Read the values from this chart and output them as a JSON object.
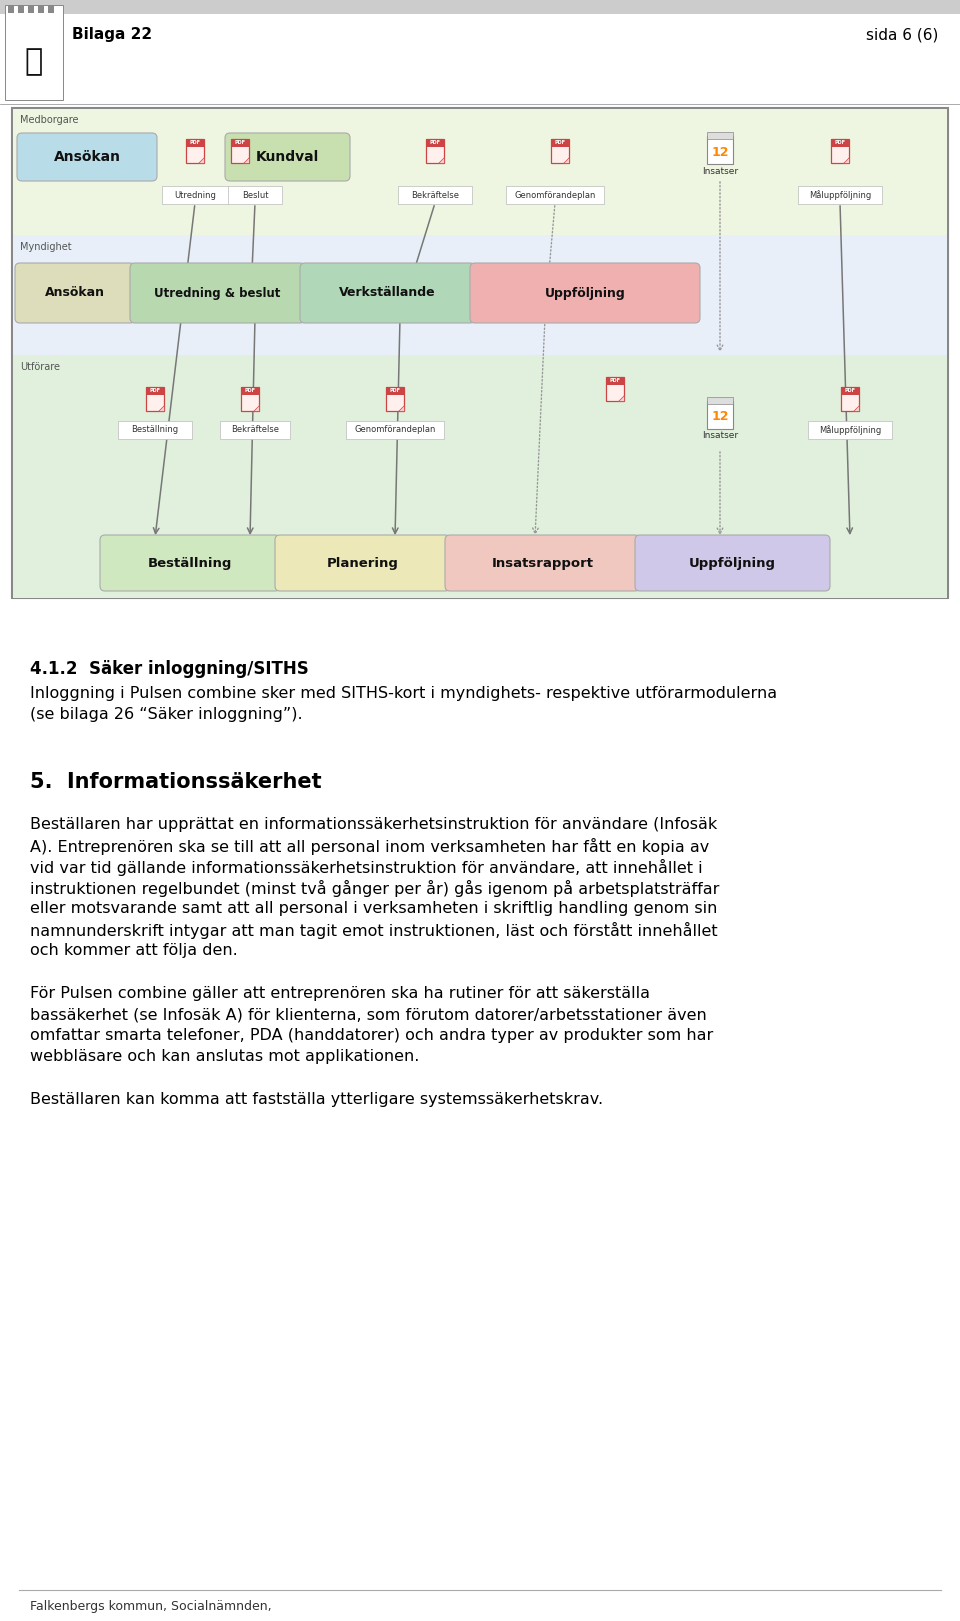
{
  "page_background": "#ffffff",
  "header_bg": "#cccccc",
  "header_text_left": "Bilaga 22",
  "header_text_right": "sida 6 (6)",
  "section_412_title": "4.1.2  Säker inloggning/SITHS",
  "section_412_line1": "Inloggning i Pulsen combine sker med SITHS-kort i myndighets- respektive utförarmodulerna",
  "section_412_line2": "(se bilaga 26 “Säker inloggning”).",
  "section_5_title": "5.  Informationssäkerhet",
  "section_5_p1": [
    "Beställaren har upprättat en informationssäkerhetsinstruktion för användare (Infosäk",
    "A). Entreprenören ska se till att all personal inom verksamheten har fått en kopia av",
    "vid var tid gällande informationssäkerhetsinstruktion för användare, att innehållet i",
    "instruktionen regelbundet (minst två gånger per år) gås igenom på arbetsplatsträffar",
    "eller motsvarande samt att all personal i verksamheten i skriftlig handling genom sin",
    "namnunderskrift intygar att man tagit emot instruktionen, läst och förstått innehållet",
    "och kommer att följa den."
  ],
  "section_5_p2": [
    "För Pulsen combine gäller att entreprenören ska ha rutiner för att säkerställa",
    "bassäkerhet (se Infosäk A) för klienterna, som förutom datorer/arbetsstationer även",
    "omfattar smarta telefoner, PDA (handdatorer) och andra typer av produkter som har",
    "webbläsare och kan anslutas mot applikationen."
  ],
  "section_5_p3": "Beställaren kan komma att fastställa ytterligare systemssäkerhetskrav.",
  "footer_text": "Falkenbergs kommun, Socialnämnden,",
  "mb_label": "Medborgare",
  "myn_label": "Myndighet",
  "utf_label": "Utförare",
  "mb_bg": "#eef5e8",
  "myn_bg": "#e8f0f8",
  "utf_bg": "#e8f0e0",
  "diag_border": "#888888",
  "diag_bg": "#ffffff"
}
